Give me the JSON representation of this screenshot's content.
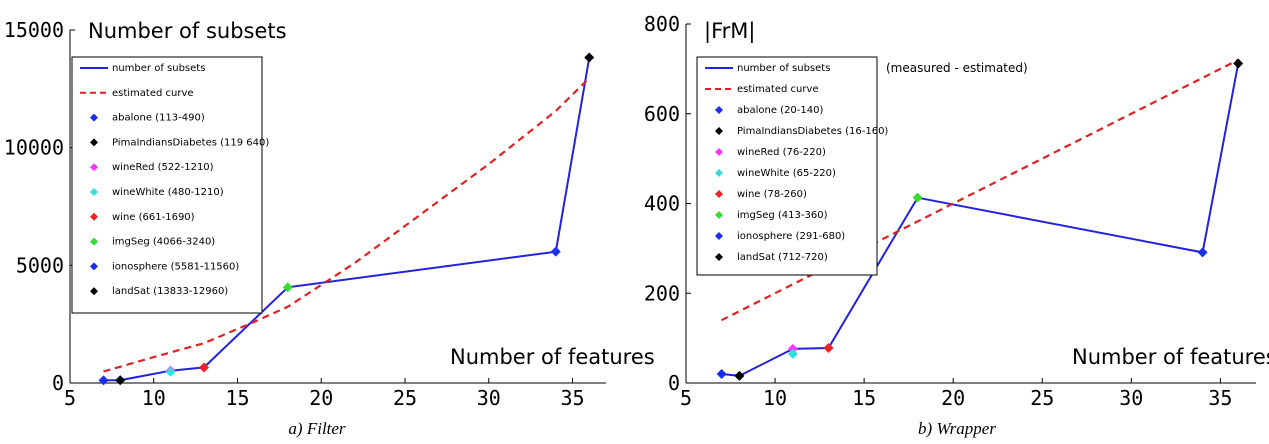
{
  "colors": {
    "line": "#2222dd",
    "curve": "#dd2222",
    "abalone": "#1a2ef0",
    "pima": "#000000",
    "wineRed": "#ff33ff",
    "wineWhite": "#33dddd",
    "wine": "#ee2222",
    "imgSeg": "#33dd33",
    "ionosphere": "#1a2ef0",
    "landSat": "#000000"
  },
  "captions": [
    "a) Filter",
    "b) Wrapper"
  ],
  "chart_data": [
    {
      "type": "line",
      "title": "Number of subsets",
      "xlabel": "Number of features",
      "ylabel": "",
      "xlim": [
        5,
        37
      ],
      "ylim": [
        0,
        15000
      ],
      "xticks": [
        "5",
        "10",
        "15",
        "20",
        "25",
        "30",
        "35"
      ],
      "yticks": [
        "0",
        "5000",
        "10000",
        "15000"
      ],
      "annotation": "",
      "legend_position": "top-left",
      "series": [
        {
          "name": "number of subsets",
          "style": "solid",
          "color_key": "line",
          "x": [
            7,
            8,
            11,
            13,
            18,
            34,
            36
          ],
          "y": [
            113,
            119,
            522,
            661,
            4066,
            5581,
            13833
          ]
        },
        {
          "name": "estimated curve",
          "style": "dashed",
          "color_key": "curve",
          "x": [
            7,
            10,
            13,
            16,
            18,
            22,
            26,
            30,
            34,
            36
          ],
          "y": [
            490,
            1100,
            1690,
            2600,
            3240,
            5100,
            7200,
            9300,
            11560,
            12960
          ]
        }
      ],
      "points": [
        {
          "label": "abalone (113-490)",
          "x": 7,
          "y": 113,
          "color_key": "abalone"
        },
        {
          "label": "PimaIndiansDiabetes (119 640)",
          "x": 8,
          "y": 119,
          "color_key": "pima"
        },
        {
          "label": "wineRed (522-1210)",
          "x": 11,
          "y": 522,
          "color_key": "wineRed"
        },
        {
          "label": "wineWhite (480-1210)",
          "x": 11,
          "y": 480,
          "color_key": "wineWhite"
        },
        {
          "label": "wine (661-1690)",
          "x": 13,
          "y": 661,
          "color_key": "wine"
        },
        {
          "label": "imgSeg (4066-3240)",
          "x": 18,
          "y": 4066,
          "color_key": "imgSeg"
        },
        {
          "label": "ionosphere (5581-11560)",
          "x": 34,
          "y": 5581,
          "color_key": "ionosphere"
        },
        {
          "label": "landSat (13833-12960)",
          "x": 36,
          "y": 13833,
          "color_key": "landSat"
        }
      ]
    },
    {
      "type": "line",
      "title": "|FrM|",
      "xlabel": "Number of features",
      "ylabel": "",
      "xlim": [
        5,
        37
      ],
      "ylim": [
        0,
        800
      ],
      "xticks": [
        "5",
        "10",
        "15",
        "20",
        "25",
        "30",
        "35"
      ],
      "yticks": [
        "0",
        "200",
        "400",
        "600",
        "800"
      ],
      "annotation": "(measured - estimated)",
      "legend_position": "top-left",
      "series": [
        {
          "name": "number of subsets",
          "style": "solid",
          "color_key": "line",
          "x": [
            7,
            8,
            11,
            13,
            18,
            34,
            36
          ],
          "y": [
            20,
            16,
            76,
            78,
            413,
            291,
            712
          ]
        },
        {
          "name": "estimated curve",
          "style": "dashed",
          "color_key": "curve",
          "x": [
            7,
            36
          ],
          "y": [
            140,
            720
          ]
        }
      ],
      "points": [
        {
          "label": "abalone (20-140)",
          "x": 7,
          "y": 20,
          "color_key": "abalone"
        },
        {
          "label": "PimaIndiansDiabetes (16-160)",
          "x": 8,
          "y": 16,
          "color_key": "pima"
        },
        {
          "label": "wineRed (76-220)",
          "x": 11,
          "y": 76,
          "color_key": "wineRed"
        },
        {
          "label": "wineWhite (65-220)",
          "x": 11,
          "y": 65,
          "color_key": "wineWhite"
        },
        {
          "label": "wine (78-260)",
          "x": 13,
          "y": 78,
          "color_key": "wine"
        },
        {
          "label": "imgSeg (413-360)",
          "x": 18,
          "y": 413,
          "color_key": "imgSeg"
        },
        {
          "label": "ionosphere (291-680)",
          "x": 34,
          "y": 291,
          "color_key": "ionosphere"
        },
        {
          "label": "landSat (712-720)",
          "x": 36,
          "y": 712,
          "color_key": "landSat"
        }
      ]
    }
  ]
}
